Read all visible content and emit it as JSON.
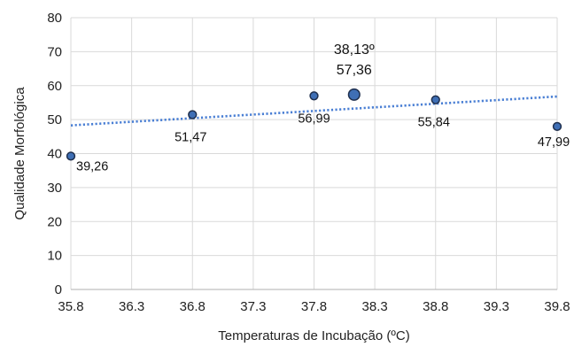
{
  "chart_data": {
    "type": "scatter",
    "title": "",
    "xlabel": "Temperaturas de Incubação (ºC)",
    "ylabel": "Qualidade Morfológica",
    "xlim": [
      35.8,
      39.8
    ],
    "ylim": [
      0,
      80
    ],
    "x_ticks": [
      35.8,
      36.3,
      36.8,
      37.3,
      37.8,
      38.3,
      38.8,
      39.3,
      39.8
    ],
    "x_tick_labels": [
      "35.8",
      "36.3",
      "36.8",
      "37.3",
      "37.8",
      "38.3",
      "38.8",
      "39.3",
      "39.8"
    ],
    "y_ticks": [
      0,
      10,
      20,
      30,
      40,
      50,
      60,
      70,
      80
    ],
    "y_tick_labels": [
      "0",
      "10",
      "20",
      "30",
      "40",
      "50",
      "60",
      "70",
      "80"
    ],
    "grid": true,
    "legend": "none",
    "points": [
      {
        "x": 35.8,
        "y": 39.26,
        "label": "39,26",
        "highlight": false
      },
      {
        "x": 36.8,
        "y": 51.47,
        "label": "51,47",
        "highlight": false
      },
      {
        "x": 37.8,
        "y": 56.99,
        "label": "56,99",
        "highlight": false
      },
      {
        "x": 38.13,
        "y": 57.36,
        "label": "57,36",
        "label_top": "38,13º",
        "highlight": true
      },
      {
        "x": 38.8,
        "y": 55.84,
        "label": "55,84",
        "highlight": false
      },
      {
        "x": 39.8,
        "y": 47.99,
        "label": "47,99",
        "highlight": false
      }
    ],
    "trendline": {
      "type": "linear",
      "style": "dotted",
      "start": {
        "x": 35.8,
        "y": 48.3
      },
      "end": {
        "x": 39.8,
        "y": 56.8
      }
    },
    "colors": {
      "marker_fill": "#3f6fb5",
      "marker_stroke": "#1f2f4d",
      "trendline": "#4a7fd4",
      "grid": "#d9d9d9",
      "axis": "#bfbfbf"
    }
  }
}
